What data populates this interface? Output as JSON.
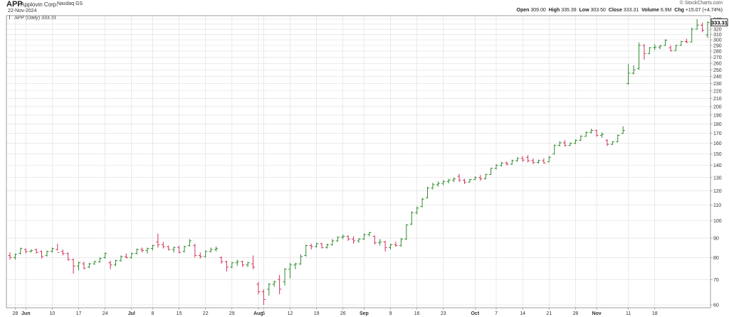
{
  "header": {
    "symbol": "APP",
    "company": "Applovin Corp.",
    "exchange": "Nasdaq GS",
    "date": "22-Nov-2024",
    "credit": "© StockCharts.com",
    "open_label": "Open",
    "open": "309.00",
    "high_label": "High",
    "high": "335.39",
    "low_label": "Low",
    "low": "303.50",
    "close_label": "Close",
    "close": "333.31",
    "volume_label": "Volume",
    "volume": "6.9M",
    "chg_label": "Chg",
    "chg": "+15.07 (+4.74%)"
  },
  "legend": "APP (Daily) 333.31",
  "colors": {
    "up": "#2e8b2e",
    "down": "#d2335c",
    "grid": "#dddddd",
    "frame": "#888888"
  },
  "chart_data": {
    "type": "ohlc",
    "title": "APP Applovin Corp. Nasdaq GS",
    "series_name": "APP (Daily)",
    "last_value": "333.31",
    "y_scale": "log",
    "ylim": [
      60,
      340
    ],
    "y_ticks": [
      60,
      70,
      80,
      90,
      100,
      110,
      120,
      130,
      140,
      150,
      160,
      170,
      180,
      190,
      200,
      210,
      220,
      230,
      240,
      250,
      260,
      270,
      280,
      290,
      300,
      310,
      320,
      330,
      340
    ],
    "x_ticks": [
      {
        "label": "28",
        "bar": 1
      },
      {
        "label": "Jun",
        "bar": 3
      },
      {
        "label": "10",
        "bar": 8
      },
      {
        "label": "17",
        "bar": 13
      },
      {
        "label": "24",
        "bar": 18
      },
      {
        "label": "Jul",
        "bar": 23
      },
      {
        "label": "8",
        "bar": 27
      },
      {
        "label": "15",
        "bar": 32
      },
      {
        "label": "22",
        "bar": 37
      },
      {
        "label": "29",
        "bar": 42
      },
      {
        "label": "Aug",
        "bar": 47
      },
      {
        "label": "5",
        "bar": 48
      },
      {
        "label": "12",
        "bar": 53
      },
      {
        "label": "19",
        "bar": 58
      },
      {
        "label": "26",
        "bar": 63
      },
      {
        "label": "Sep",
        "bar": 67
      },
      {
        "label": "9",
        "bar": 72
      },
      {
        "label": "16",
        "bar": 77
      },
      {
        "label": "23",
        "bar": 82
      },
      {
        "label": "Oct",
        "bar": 88
      },
      {
        "label": "7",
        "bar": 92
      },
      {
        "label": "14",
        "bar": 97
      },
      {
        "label": "21",
        "bar": 102
      },
      {
        "label": "28",
        "bar": 107
      },
      {
        "label": "Nov",
        "bar": 111
      },
      {
        "label": "11",
        "bar": 117
      },
      {
        "label": "18",
        "bar": 122
      }
    ],
    "bars": [
      {
        "o": 81,
        "h": 82.5,
        "l": 79,
        "c": 80
      },
      {
        "o": 80,
        "h": 82,
        "l": 79,
        "c": 81.5
      },
      {
        "o": 82,
        "h": 85,
        "l": 81.5,
        "c": 84.5
      },
      {
        "o": 84,
        "h": 84.5,
        "l": 82,
        "c": 83
      },
      {
        "o": 83,
        "h": 84,
        "l": 82.5,
        "c": 83.5
      },
      {
        "o": 84,
        "h": 84.5,
        "l": 82,
        "c": 82.5
      },
      {
        "o": 83,
        "h": 83.5,
        "l": 79.5,
        "c": 80.5
      },
      {
        "o": 81,
        "h": 83.5,
        "l": 80.5,
        "c": 83
      },
      {
        "o": 83,
        "h": 85,
        "l": 82.5,
        "c": 84.5
      },
      {
        "o": 84,
        "h": 87,
        "l": 83.5,
        "c": 82.5
      },
      {
        "o": 83,
        "h": 84,
        "l": 81,
        "c": 82
      },
      {
        "o": 82,
        "h": 82.5,
        "l": 78.5,
        "c": 79
      },
      {
        "o": 79,
        "h": 79.5,
        "l": 72.5,
        "c": 76
      },
      {
        "o": 76,
        "h": 78,
        "l": 74,
        "c": 77.5
      },
      {
        "o": 77,
        "h": 78,
        "l": 74.5,
        "c": 75
      },
      {
        "o": 75.5,
        "h": 77.5,
        "l": 75,
        "c": 77
      },
      {
        "o": 77,
        "h": 78.5,
        "l": 76.5,
        "c": 78
      },
      {
        "o": 78,
        "h": 80,
        "l": 77.5,
        "c": 79.5
      },
      {
        "o": 80,
        "h": 82.5,
        "l": 79.5,
        "c": 82
      },
      {
        "o": 77.5,
        "h": 78.5,
        "l": 74.5,
        "c": 76.5
      },
      {
        "o": 76.5,
        "h": 79,
        "l": 76,
        "c": 78.5
      },
      {
        "o": 78.5,
        "h": 81,
        "l": 78,
        "c": 80.5
      },
      {
        "o": 80.5,
        "h": 82,
        "l": 79.5,
        "c": 80
      },
      {
        "o": 80,
        "h": 82.5,
        "l": 79.5,
        "c": 82
      },
      {
        "o": 82,
        "h": 84.5,
        "l": 81.5,
        "c": 84
      },
      {
        "o": 84,
        "h": 85,
        "l": 82.5,
        "c": 83.5
      },
      {
        "o": 83.5,
        "h": 85,
        "l": 82,
        "c": 84.5
      },
      {
        "o": 84.5,
        "h": 86.5,
        "l": 83.5,
        "c": 86
      },
      {
        "o": 88,
        "h": 92.5,
        "l": 85,
        "c": 86.5
      },
      {
        "o": 86.5,
        "h": 88,
        "l": 84.5,
        "c": 85.5
      },
      {
        "o": 85.5,
        "h": 86,
        "l": 83.5,
        "c": 84
      },
      {
        "o": 84,
        "h": 85.5,
        "l": 82.5,
        "c": 85
      },
      {
        "o": 85,
        "h": 86,
        "l": 82,
        "c": 82.5
      },
      {
        "o": 83,
        "h": 86,
        "l": 82.5,
        "c": 85.5
      },
      {
        "o": 86,
        "h": 89.5,
        "l": 85.5,
        "c": 88.5
      },
      {
        "o": 86,
        "h": 87,
        "l": 80,
        "c": 81
      },
      {
        "o": 81,
        "h": 82.5,
        "l": 79.5,
        "c": 80.5
      },
      {
        "o": 80.5,
        "h": 83.5,
        "l": 80,
        "c": 83
      },
      {
        "o": 83,
        "h": 85,
        "l": 82.5,
        "c": 84
      },
      {
        "o": 84,
        "h": 85.5,
        "l": 83,
        "c": 84.5
      },
      {
        "o": 80,
        "h": 80.5,
        "l": 77,
        "c": 78
      },
      {
        "o": 78,
        "h": 78.5,
        "l": 73.5,
        "c": 75.5
      },
      {
        "o": 75.5,
        "h": 78,
        "l": 75,
        "c": 77.5
      },
      {
        "o": 77.5,
        "h": 79,
        "l": 76,
        "c": 78
      },
      {
        "o": 78,
        "h": 78.5,
        "l": 75.5,
        "c": 76.5
      },
      {
        "o": 76.5,
        "h": 78,
        "l": 75.5,
        "c": 77.5
      },
      {
        "o": 77,
        "h": 81,
        "l": 74.5,
        "c": 75.5
      },
      {
        "o": 68,
        "h": 69,
        "l": 64,
        "c": 65
      },
      {
        "o": 65,
        "h": 66,
        "l": 60,
        "c": 62
      },
      {
        "o": 66,
        "h": 68.5,
        "l": 63.5,
        "c": 68
      },
      {
        "o": 68,
        "h": 69.5,
        "l": 67,
        "c": 69
      },
      {
        "o": 70,
        "h": 72,
        "l": 64,
        "c": 66
      },
      {
        "o": 69,
        "h": 75,
        "l": 67.5,
        "c": 74.5
      },
      {
        "o": 74.5,
        "h": 77.5,
        "l": 70.5,
        "c": 76.5
      },
      {
        "o": 76.5,
        "h": 77.5,
        "l": 74.5,
        "c": 77
      },
      {
        "o": 77,
        "h": 81.5,
        "l": 76.5,
        "c": 80.5
      },
      {
        "o": 81,
        "h": 86.5,
        "l": 80.5,
        "c": 86
      },
      {
        "o": 86,
        "h": 87,
        "l": 84,
        "c": 85.5
      },
      {
        "o": 85.5,
        "h": 87.5,
        "l": 85,
        "c": 87
      },
      {
        "o": 87,
        "h": 87.5,
        "l": 84.5,
        "c": 85
      },
      {
        "o": 85,
        "h": 87,
        "l": 84.5,
        "c": 86.5
      },
      {
        "o": 86.5,
        "h": 89.5,
        "l": 86,
        "c": 88.5
      },
      {
        "o": 88.5,
        "h": 91,
        "l": 88,
        "c": 90.5
      },
      {
        "o": 90.5,
        "h": 92,
        "l": 89.5,
        "c": 91
      },
      {
        "o": 91,
        "h": 91.5,
        "l": 88.5,
        "c": 89.5
      },
      {
        "o": 89.5,
        "h": 91,
        "l": 87,
        "c": 88.5
      },
      {
        "o": 88.5,
        "h": 90,
        "l": 87.5,
        "c": 89.5
      },
      {
        "o": 89.5,
        "h": 92.5,
        "l": 89,
        "c": 92
      },
      {
        "o": 92,
        "h": 93.5,
        "l": 91,
        "c": 93
      },
      {
        "o": 91,
        "h": 91.5,
        "l": 86.5,
        "c": 87.5
      },
      {
        "o": 87.5,
        "h": 89.5,
        "l": 86,
        "c": 88
      },
      {
        "o": 88,
        "h": 88.5,
        "l": 83,
        "c": 85
      },
      {
        "o": 85,
        "h": 87,
        "l": 84,
        "c": 86.5
      },
      {
        "o": 86.5,
        "h": 88,
        "l": 85.5,
        "c": 86
      },
      {
        "o": 86,
        "h": 90,
        "l": 85.5,
        "c": 89.5
      },
      {
        "o": 89.5,
        "h": 98,
        "l": 89,
        "c": 97.5
      },
      {
        "o": 98,
        "h": 106,
        "l": 97.5,
        "c": 105
      },
      {
        "o": 105,
        "h": 109,
        "l": 104,
        "c": 108
      },
      {
        "o": 109,
        "h": 115,
        "l": 108.5,
        "c": 114
      },
      {
        "o": 115,
        "h": 123,
        "l": 114.5,
        "c": 122
      },
      {
        "o": 122,
        "h": 126,
        "l": 121,
        "c": 124.5
      },
      {
        "o": 124.5,
        "h": 127,
        "l": 123,
        "c": 125.5
      },
      {
        "o": 125.5,
        "h": 128,
        "l": 124,
        "c": 127
      },
      {
        "o": 127,
        "h": 129,
        "l": 125.5,
        "c": 128
      },
      {
        "o": 128,
        "h": 130,
        "l": 126.5,
        "c": 129
      },
      {
        "o": 131,
        "h": 133,
        "l": 126.5,
        "c": 128
      },
      {
        "o": 128,
        "h": 129,
        "l": 125,
        "c": 126.5
      },
      {
        "o": 126.5,
        "h": 129,
        "l": 126,
        "c": 128.5
      },
      {
        "o": 128.5,
        "h": 131,
        "l": 128,
        "c": 130
      },
      {
        "o": 130,
        "h": 132,
        "l": 127.5,
        "c": 129
      },
      {
        "o": 129,
        "h": 133,
        "l": 128.5,
        "c": 132.5
      },
      {
        "o": 132.5,
        "h": 138,
        "l": 132,
        "c": 137.5
      },
      {
        "o": 137.5,
        "h": 141,
        "l": 136.5,
        "c": 140
      },
      {
        "o": 140,
        "h": 143,
        "l": 139,
        "c": 142
      },
      {
        "o": 142,
        "h": 143.5,
        "l": 140,
        "c": 141
      },
      {
        "o": 141,
        "h": 145,
        "l": 140.5,
        "c": 144
      },
      {
        "o": 144,
        "h": 147,
        "l": 143,
        "c": 146
      },
      {
        "o": 146,
        "h": 148,
        "l": 143,
        "c": 144.5
      },
      {
        "o": 147,
        "h": 149,
        "l": 142.5,
        "c": 144
      },
      {
        "o": 144,
        "h": 146,
        "l": 141,
        "c": 142.5
      },
      {
        "o": 142.5,
        "h": 145,
        "l": 141.5,
        "c": 144
      },
      {
        "o": 144,
        "h": 146,
        "l": 141.5,
        "c": 142
      },
      {
        "o": 143,
        "h": 148,
        "l": 142.5,
        "c": 147
      },
      {
        "o": 150,
        "h": 159,
        "l": 149.5,
        "c": 158
      },
      {
        "o": 158,
        "h": 162,
        "l": 157,
        "c": 160.5
      },
      {
        "o": 160.5,
        "h": 163,
        "l": 157,
        "c": 158
      },
      {
        "o": 158,
        "h": 161,
        "l": 157.5,
        "c": 160
      },
      {
        "o": 160,
        "h": 164,
        "l": 159.5,
        "c": 163
      },
      {
        "o": 163,
        "h": 168,
        "l": 162.5,
        "c": 167
      },
      {
        "o": 167,
        "h": 172,
        "l": 166.5,
        "c": 171
      },
      {
        "o": 171,
        "h": 175,
        "l": 170,
        "c": 173
      },
      {
        "o": 173,
        "h": 174,
        "l": 166.5,
        "c": 168
      },
      {
        "o": 168,
        "h": 171,
        "l": 165.5,
        "c": 169
      },
      {
        "o": 163,
        "h": 164,
        "l": 157.5,
        "c": 159
      },
      {
        "o": 159,
        "h": 162,
        "l": 158.5,
        "c": 161.5
      },
      {
        "o": 161.5,
        "h": 169,
        "l": 161,
        "c": 168
      },
      {
        "o": 170,
        "h": 177.5,
        "l": 169.5,
        "c": 173
      },
      {
        "o": 230,
        "h": 259,
        "l": 228.5,
        "c": 245
      },
      {
        "o": 245,
        "h": 257,
        "l": 243,
        "c": 250
      },
      {
        "o": 252,
        "h": 295,
        "l": 250,
        "c": 290
      },
      {
        "o": 290,
        "h": 292,
        "l": 266,
        "c": 276
      },
      {
        "o": 276,
        "h": 287,
        "l": 275,
        "c": 286
      },
      {
        "o": 286,
        "h": 292,
        "l": 282,
        "c": 287
      },
      {
        "o": 287,
        "h": 291,
        "l": 283,
        "c": 289
      },
      {
        "o": 290,
        "h": 301,
        "l": 289,
        "c": 299
      },
      {
        "o": 286,
        "h": 290,
        "l": 279.5,
        "c": 281
      },
      {
        "o": 281,
        "h": 291,
        "l": 280.5,
        "c": 290
      },
      {
        "o": 290,
        "h": 298,
        "l": 289,
        "c": 297
      },
      {
        "o": 297,
        "h": 302,
        "l": 294,
        "c": 296
      },
      {
        "o": 296,
        "h": 323,
        "l": 295.5,
        "c": 320
      },
      {
        "o": 320,
        "h": 340,
        "l": 319,
        "c": 328
      },
      {
        "o": 328,
        "h": 333,
        "l": 314,
        "c": 318
      },
      {
        "o": 309,
        "h": 335.39,
        "l": 303.5,
        "c": 333.31
      }
    ]
  }
}
